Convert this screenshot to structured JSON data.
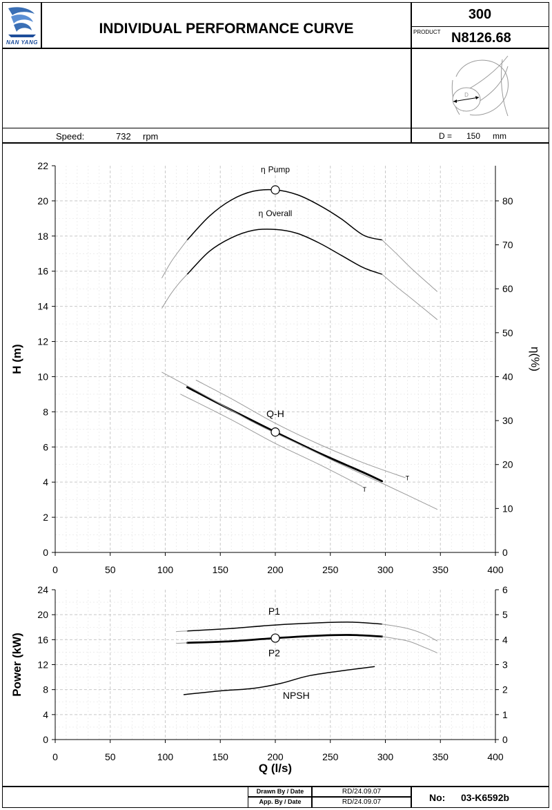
{
  "header": {
    "logo_text": "NAN YANG",
    "title": "INDIVIDUAL PERFORMANCE  CURVE",
    "model_number": "300",
    "product_label": "PRODUCT",
    "product_code": "N8126.68"
  },
  "specs": {
    "speed_label": "Speed:",
    "speed_value": "732",
    "speed_unit": "rpm",
    "diameter_label": "D =",
    "diameter_value": "150",
    "diameter_unit": "mm",
    "impeller_letter": "D"
  },
  "footer": {
    "drawn_label": "Drawn By / Date",
    "drawn_value": "RD/24.09.07",
    "approved_label": "App. By / Date",
    "approved_value": "RD/24.09.07",
    "number_label": "No:",
    "number_value": "03-K6592b"
  },
  "colors": {
    "main": "#000000",
    "secondary": "#9a9a9a",
    "grid": "#c8c8c8"
  },
  "chart_data": [
    {
      "type": "line",
      "xlabel": "",
      "ylabel": "H (m)",
      "y2label": "η(%)",
      "xlim": [
        0,
        400
      ],
      "ylim": [
        0,
        22
      ],
      "y2lim": [
        0,
        88
      ],
      "xticks": [
        0,
        50,
        100,
        150,
        200,
        250,
        300,
        350,
        400
      ],
      "yticks": [
        0,
        2,
        4,
        6,
        8,
        10,
        12,
        14,
        16,
        18,
        20,
        22
      ],
      "y2ticks": [
        0,
        10,
        20,
        30,
        40,
        50,
        60,
        70,
        80
      ],
      "grid": true,
      "series": [
        {
          "name": "η Pump",
          "axis": "y2",
          "style": "main",
          "x": [
            120,
            140,
            160,
            180,
            200,
            220,
            240,
            260,
            280,
            297
          ],
          "y": [
            71.1,
            76.5,
            80.2,
            82.2,
            82.5,
            81.4,
            79.0,
            75.9,
            72.2,
            71.1
          ]
        },
        {
          "axis": "y2",
          "style": "ext",
          "x": [
            97,
            105,
            113,
            120
          ],
          "y": [
            62.5,
            66.0,
            68.8,
            71.1
          ]
        },
        {
          "axis": "y2",
          "style": "ext",
          "x": [
            297,
            310,
            325,
            347
          ],
          "y": [
            71.1,
            68.0,
            64.3,
            59.4
          ]
        },
        {
          "name": "η Overall",
          "axis": "y2",
          "style": "main",
          "x": [
            120,
            140,
            160,
            180,
            200,
            220,
            240,
            260,
            280,
            297
          ],
          "y": [
            63.3,
            68.5,
            71.6,
            73.3,
            73.5,
            72.6,
            70.4,
            67.6,
            64.8,
            63.3
          ]
        },
        {
          "axis": "y2",
          "style": "ext",
          "x": [
            97,
            105,
            113,
            120
          ],
          "y": [
            55.6,
            58.8,
            61.4,
            63.3
          ]
        },
        {
          "axis": "y2",
          "style": "ext",
          "x": [
            297,
            310,
            325,
            347
          ],
          "y": [
            63.3,
            60.5,
            57.5,
            53.0
          ]
        },
        {
          "name": "Q-H",
          "axis": "y",
          "style": "bold",
          "x": [
            120,
            160,
            200,
            240,
            280,
            297
          ],
          "y": [
            9.4,
            8.1,
            6.85,
            5.65,
            4.55,
            4.05
          ]
        },
        {
          "axis": "y",
          "style": "thin",
          "x": [
            97,
            140,
            180,
            220,
            260,
            300,
            347
          ],
          "y": [
            10.25,
            8.8,
            7.4,
            6.2,
            5.0,
            3.85,
            2.45
          ]
        },
        {
          "axis": "y",
          "style": "thin",
          "x": [
            128,
            160,
            200,
            240,
            280,
            318
          ],
          "y": [
            9.8,
            8.75,
            7.35,
            6.15,
            5.1,
            4.25
          ]
        },
        {
          "axis": "y",
          "style": "thin",
          "x": [
            114,
            160,
            200,
            240,
            279
          ],
          "y": [
            9.0,
            7.55,
            6.2,
            5.0,
            3.75
          ]
        }
      ],
      "markers": [
        {
          "x": 200,
          "y": 82.5,
          "axis": "y2"
        },
        {
          "x": 200,
          "y": 6.85,
          "axis": "y"
        }
      ],
      "annotations": [
        {
          "text": "Pump",
          "symbol": "η",
          "x": 200,
          "y": 86.5,
          "axis": "y2"
        },
        {
          "text": "Overall",
          "symbol": "η",
          "x": 200,
          "y": 76.5,
          "axis": "y2"
        },
        {
          "text": "Q-H",
          "x": 200,
          "y": 7.7,
          "axis": "y"
        },
        {
          "text": "T",
          "x": 320,
          "y": 4.1,
          "axis": "y"
        },
        {
          "text": "T",
          "x": 281,
          "y": 3.45,
          "axis": "y"
        }
      ]
    },
    {
      "type": "line",
      "xlabel": "Q (l/s)",
      "ylabel": "Power (kW)",
      "y2label": "",
      "xlim": [
        0,
        400
      ],
      "ylim": [
        0,
        24
      ],
      "y2lim": [
        0,
        6
      ],
      "xticks": [
        0,
        50,
        100,
        150,
        200,
        250,
        300,
        350,
        400
      ],
      "yticks": [
        0,
        4,
        8,
        12,
        16,
        20,
        24
      ],
      "y2ticks": [
        0,
        1,
        2,
        3,
        4,
        5,
        6
      ],
      "grid": true,
      "series": [
        {
          "name": "P1",
          "axis": "y",
          "style": "main",
          "x": [
            120,
            160,
            200,
            240,
            270,
            297
          ],
          "y": [
            17.4,
            17.8,
            18.35,
            18.7,
            18.8,
            18.5
          ]
        },
        {
          "axis": "y",
          "style": "ext",
          "x": [
            110,
            120
          ],
          "y": [
            17.3,
            17.4
          ]
        },
        {
          "axis": "y",
          "style": "ext",
          "x": [
            297,
            320,
            335,
            347
          ],
          "y": [
            18.5,
            17.8,
            16.9,
            15.8
          ]
        },
        {
          "name": "P2",
          "axis": "y",
          "style": "bold",
          "x": [
            120,
            160,
            200,
            240,
            270,
            297
          ],
          "y": [
            15.5,
            15.75,
            16.25,
            16.65,
            16.75,
            16.5
          ]
        },
        {
          "axis": "y",
          "style": "ext",
          "x": [
            110,
            120
          ],
          "y": [
            15.4,
            15.5
          ]
        },
        {
          "axis": "y",
          "style": "ext",
          "x": [
            297,
            320,
            335,
            347
          ],
          "y": [
            16.5,
            15.8,
            14.8,
            13.9
          ]
        },
        {
          "name": "NPSH",
          "axis": "y2",
          "style": "main",
          "x": [
            117,
            150,
            180,
            205,
            230,
            260,
            290
          ],
          "y": [
            1.8,
            1.95,
            2.05,
            2.25,
            2.55,
            2.75,
            2.92
          ]
        }
      ],
      "markers": [
        {
          "x": 200,
          "y": 16.25,
          "axis": "y"
        }
      ],
      "annotations": [
        {
          "text": "P1",
          "x": 199,
          "y": 20.0,
          "axis": "y"
        },
        {
          "text": "P2",
          "x": 199,
          "y": 13.3,
          "axis": "y"
        },
        {
          "text": "NPSH",
          "x": 219,
          "y": 6.5,
          "axis": "y"
        }
      ]
    }
  ]
}
